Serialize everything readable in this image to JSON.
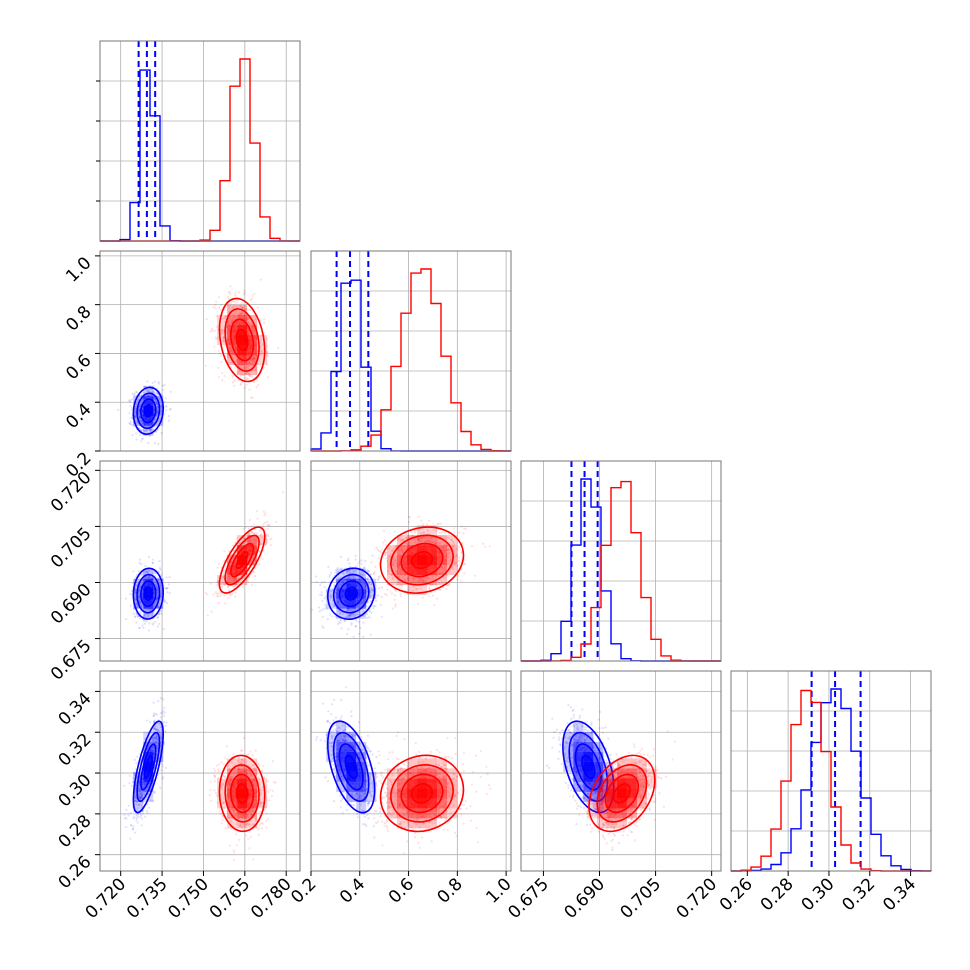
{
  "chart_data": {
    "type": "corner",
    "parameters": [
      {
        "range": [
          0.7125,
          0.785
        ],
        "ticks": [
          0.72,
          0.735,
          0.75,
          0.765,
          0.78
        ],
        "tick_labels": [
          "0.720",
          "0.735",
          "0.750",
          "0.765",
          "0.780"
        ]
      },
      {
        "range": [
          0.2,
          1.02
        ],
        "ticks": [
          0.2,
          0.4,
          0.6,
          0.8,
          1.0
        ],
        "tick_labels": [
          "0.2",
          "0.4",
          "0.6",
          "0.8",
          "1.0"
        ]
      },
      {
        "range": [
          0.669,
          0.7225
        ],
        "ticks": [
          0.675,
          0.69,
          0.705,
          0.72
        ],
        "tick_labels": [
          "0.675",
          "0.690",
          "0.705",
          "0.720"
        ]
      },
      {
        "range": [
          0.252,
          0.35
        ],
        "ticks": [
          0.26,
          0.28,
          0.3,
          0.32,
          0.34
        ],
        "tick_labels": [
          "0.26",
          "0.28",
          "0.30",
          "0.32",
          "0.34"
        ]
      }
    ],
    "series": [
      {
        "color": "#0000ff",
        "means": [
          0.73,
          0.365,
          0.687,
          0.303
        ],
        "sigmas": [
          0.0027,
          0.048,
          0.0034,
          0.0112
        ],
        "correlations": {
          "0-1": 0.1,
          "0-2": 0.05,
          "0-3": 0.72,
          "1-2": 0.1,
          "1-3": -0.5,
          "2-3": -0.45
        },
        "quantiles": [
          [
            0.7265,
            0.7295,
            0.7325
          ],
          [
            0.305,
            0.36,
            0.435
          ],
          [
            0.6825,
            0.686,
            0.6895
          ],
          [
            0.2915,
            0.303,
            0.3155
          ]
        ]
      },
      {
        "color": "#ff0000",
        "means": [
          0.764,
          0.655,
          0.696,
          0.29
        ],
        "sigmas": [
          0.0041,
          0.085,
          0.0044,
          0.0093
        ],
        "correlations": {
          "0-1": -0.25,
          "0-2": 0.72,
          "0-3": -0.05,
          "1-2": 0.15,
          "1-3": 0.1,
          "2-3": 0.35
        }
      }
    ],
    "grid": true,
    "legend": "none"
  }
}
